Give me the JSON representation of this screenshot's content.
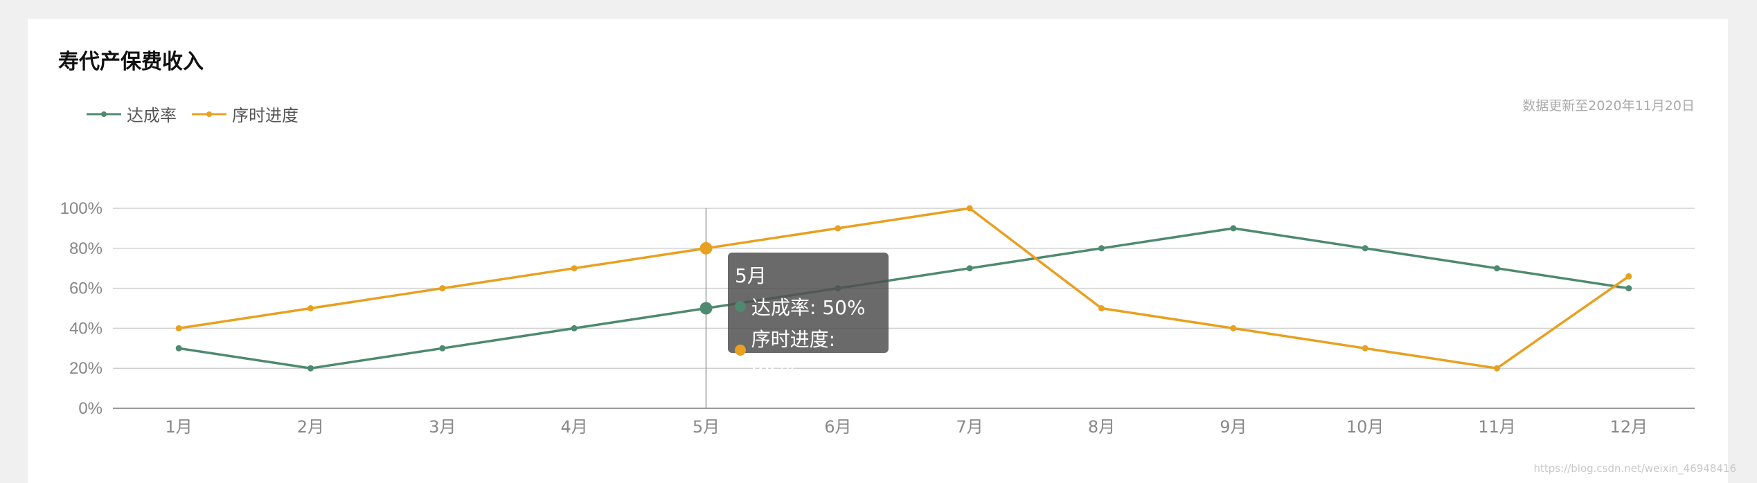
{
  "colors": {
    "primary": "#4e8a70",
    "secondary": "#e8a020"
  },
  "update_note": "数据更新至2020年11月20日",
  "watermark": "https://blog.csdn.net/weixin_46948416",
  "tooltip": {
    "title": "5月",
    "rows": [
      {
        "label": "达成率: 50%",
        "color": "#4e8a70"
      },
      {
        "label": "序时进度: 80%",
        "color": "#e8a020"
      }
    ]
  },
  "chart_data": {
    "type": "line",
    "title": "寿代产保费收入",
    "categories": [
      "1月",
      "2月",
      "3月",
      "4月",
      "5月",
      "6月",
      "7月",
      "8月",
      "9月",
      "10月",
      "11月",
      "12月"
    ],
    "series": [
      {
        "name": "达成率",
        "color": "#4e8a70",
        "values": [
          30,
          20,
          30,
          40,
          50,
          60,
          70,
          80,
          90,
          80,
          70,
          60
        ]
      },
      {
        "name": "序时进度",
        "color": "#e8a020",
        "values": [
          40,
          50,
          60,
          70,
          80,
          90,
          100,
          50,
          40,
          30,
          20,
          66
        ]
      }
    ],
    "yticks": [
      "0%",
      "20%",
      "40%",
      "60%",
      "80%",
      "100%"
    ],
    "ylim": [
      0,
      100
    ],
    "grid": true,
    "legend_position": "top-left",
    "highlight_index": 4
  }
}
